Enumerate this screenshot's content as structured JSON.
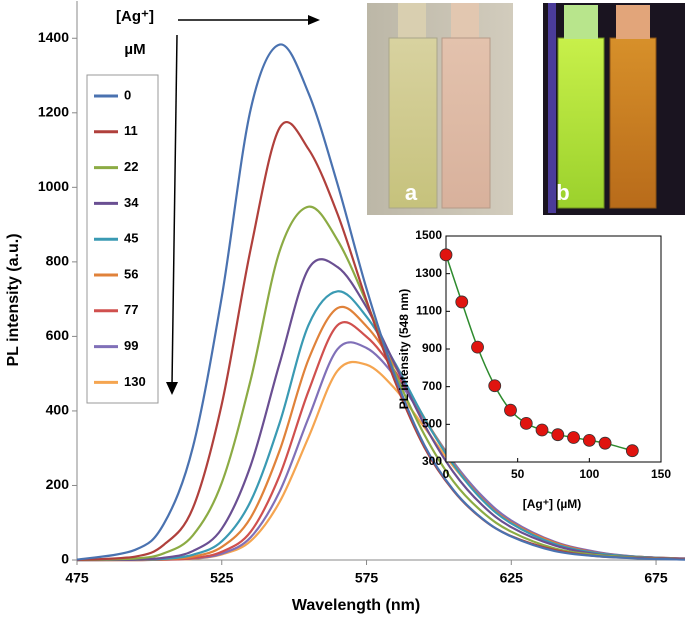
{
  "chart_data": [
    {
      "type": "line",
      "xlabel": "Wavelength (nm)",
      "ylabel": "PL intensity (a.u.)",
      "legend_title": [
        "[Ag⁺]",
        "µM"
      ],
      "annotations": [
        "a",
        "b"
      ],
      "xlim": [
        475,
        685
      ],
      "ylim": [
        0,
        1500
      ],
      "xticks": [
        475,
        525,
        575,
        625,
        675
      ],
      "yticks": [
        0,
        200,
        400,
        600,
        800,
        1000,
        1200,
        1400
      ],
      "x": [
        475,
        495,
        505,
        515,
        525,
        535,
        545,
        555,
        565,
        575,
        585,
        595,
        605,
        615,
        625,
        640,
        655,
        670,
        685
      ],
      "series": [
        {
          "name": "0",
          "color": "#4a72b0",
          "values": [
            1,
            27,
            97,
            302,
            706,
            1210,
            1383,
            1252,
            1008,
            728,
            490,
            308,
            188,
            111,
            63,
            24,
            10,
            4,
            1
          ]
        },
        {
          "name": "11",
          "color": "#b0403c",
          "values": [
            0,
            9,
            41,
            139,
            418,
            835,
            1160,
            1102,
            928,
            696,
            476,
            302,
            186,
            110,
            64,
            27,
            10,
            5,
            2
          ]
        },
        {
          "name": "22",
          "color": "#8cab44",
          "values": [
            0,
            4,
            18,
            66,
            207,
            484,
            829,
            948,
            858,
            691,
            499,
            336,
            211,
            129,
            76,
            31,
            13,
            6,
            2
          ]
        },
        {
          "name": "34",
          "color": "#6a4f92",
          "values": [
            0,
            1,
            6,
            24,
            84,
            254,
            528,
            782,
            786,
            678,
            522,
            363,
            236,
            147,
            88,
            39,
            15,
            7,
            3
          ]
        },
        {
          "name": "45",
          "color": "#3a9ab3",
          "values": [
            0,
            1,
            3,
            14,
            50,
            158,
            368,
            631,
            721,
            653,
            526,
            380,
            256,
            161,
            98,
            43,
            18,
            8,
            3
          ]
        },
        {
          "name": "56",
          "color": "#e0823a",
          "values": [
            0,
            0,
            2,
            9,
            35,
            114,
            294,
            539,
            676,
            627,
            517,
            381,
            258,
            163,
            100,
            46,
            18,
            8,
            3
          ]
        },
        {
          "name": "77",
          "color": "#d0504e",
          "values": [
            0,
            0,
            1,
            5,
            22,
            76,
            227,
            454,
            630,
            599,
            504,
            378,
            258,
            164,
            101,
            47,
            19,
            8,
            4
          ]
        },
        {
          "name": "99",
          "color": "#8070b8",
          "values": [
            0,
            0,
            1,
            4,
            17,
            61,
            184,
            382,
            566,
            569,
            491,
            378,
            263,
            171,
            106,
            49,
            21,
            8,
            4
          ]
        },
        {
          "name": "130",
          "color": "#f5a550",
          "values": [
            0,
            0,
            1,
            3,
            15,
            51,
            156,
            330,
            508,
            524,
            458,
            356,
            251,
            165,
            103,
            47,
            20,
            8,
            4
          ]
        }
      ]
    },
    {
      "type": "line",
      "xlabel": "[Ag⁺]  (µM)",
      "ylabel": "PL intensity (548  nm)",
      "xlim": [
        0,
        150
      ],
      "ylim": [
        300,
        1500
      ],
      "xticks": [
        0,
        50,
        100,
        150
      ],
      "yticks": [
        300,
        500,
        700,
        900,
        1100,
        1300,
        1500
      ],
      "color": "#2e8b2e",
      "marker_color": "#e0140f",
      "x": [
        0,
        11,
        22,
        34,
        45,
        56,
        67,
        78,
        89,
        100,
        111,
        130
      ],
      "values": [
        1400,
        1150,
        910,
        705,
        575,
        505,
        470,
        445,
        430,
        415,
        400,
        360
      ]
    }
  ]
}
